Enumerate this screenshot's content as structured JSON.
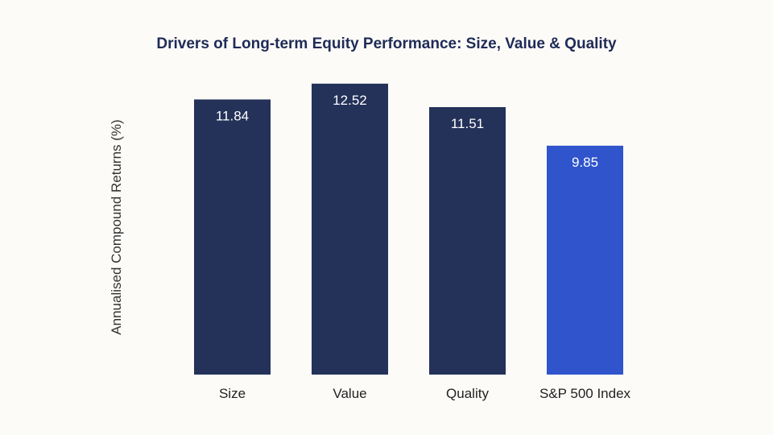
{
  "chart_data": {
    "type": "bar",
    "title": "Drivers of Long-term Equity Performance: Size, Value & Quality",
    "xlabel": "",
    "ylabel": "Annualised Compound Returns (%)",
    "categories": [
      "Size",
      "Value",
      "Quality",
      "S&P 500 Index"
    ],
    "values": [
      11.84,
      12.52,
      11.51,
      9.85
    ],
    "value_labels": [
      "11.84",
      "12.52",
      "11.51",
      "9.85"
    ],
    "bar_colors": [
      "#243259",
      "#243259",
      "#243259",
      "#2f54cc"
    ],
    "ylim": [
      0,
      13
    ],
    "grid": false,
    "legend": "none"
  }
}
